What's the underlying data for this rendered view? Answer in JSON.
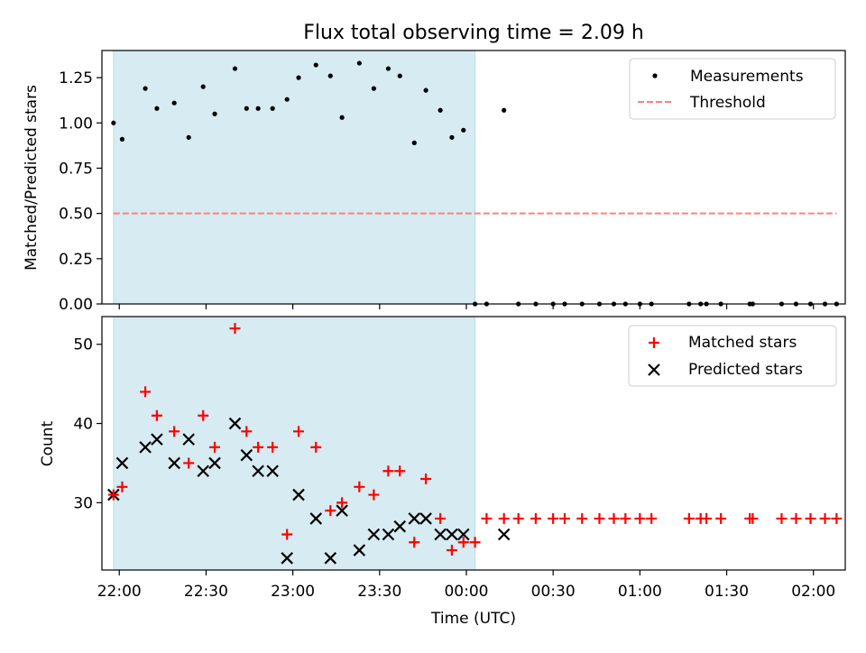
{
  "title": "Flux total observing time = 2.09 h",
  "colors": {
    "shade": "#add8e6",
    "threshold": "#ff7f7f",
    "matched": "#ff0000",
    "predicted": "#000000",
    "measurement": "#000000"
  },
  "chart_data": [
    {
      "type": "scatter",
      "panel": "top",
      "ylabel": "Matched/Predicted stars",
      "ylim": [
        0.0,
        1.4
      ],
      "yticks": [
        "0.00",
        "0.25",
        "0.50",
        "0.75",
        "1.00",
        "1.25"
      ],
      "xlim": [
        "21:54",
        "02:11"
      ],
      "shaded_interval": [
        "21:58",
        "00:03"
      ],
      "threshold": 0.5,
      "threshold_x": [
        "21:58",
        "02:08"
      ],
      "legend": {
        "placement": "upper right",
        "entries": [
          "Measurements",
          "Threshold"
        ]
      },
      "series": [
        {
          "name": "Measurements",
          "marker": "dot",
          "x": [
            "21:58",
            "22:01",
            "22:09",
            "22:13",
            "22:19",
            "22:24",
            "22:29",
            "22:33",
            "22:40",
            "22:44",
            "22:48",
            "22:53",
            "22:58",
            "23:02",
            "23:08",
            "23:13",
            "23:17",
            "23:23",
            "23:28",
            "23:33",
            "23:37",
            "23:42",
            "23:46",
            "23:51",
            "23:55",
            "23:59",
            "00:03",
            "00:07",
            "00:13",
            "00:18",
            "00:24",
            "00:30",
            "00:34",
            "00:40",
            "00:46",
            "00:51",
            "00:55",
            "01:00",
            "01:04",
            "01:17",
            "01:21",
            "01:23",
            "01:28",
            "01:38",
            "01:39",
            "01:49",
            "01:54",
            "01:59",
            "02:04",
            "02:08"
          ],
          "values": [
            1.0,
            0.91,
            1.19,
            1.08,
            1.11,
            0.92,
            1.2,
            1.05,
            1.3,
            1.08,
            1.08,
            1.08,
            1.13,
            1.25,
            1.32,
            1.26,
            1.03,
            1.33,
            1.19,
            1.3,
            1.26,
            0.89,
            1.18,
            1.07,
            0.92,
            0.96,
            0.0,
            0.0,
            1.07,
            0.0,
            0.0,
            0.0,
            0.0,
            0.0,
            0.0,
            0.0,
            0.0,
            0.0,
            0.0,
            0.0,
            0.0,
            0.0,
            0.0,
            0.0,
            0.0,
            0.0,
            0.0,
            0.0,
            0.0,
            0.0
          ]
        }
      ]
    },
    {
      "type": "scatter",
      "panel": "bottom",
      "ylabel": "Count",
      "xlabel": "Time (UTC)",
      "ylim": [
        21.5,
        53.5
      ],
      "yticks": [
        "30",
        "40",
        "50"
      ],
      "xlim": [
        "21:54",
        "02:11"
      ],
      "xticks": [
        "22:00",
        "22:30",
        "23:00",
        "23:30",
        "00:00",
        "00:30",
        "01:00",
        "01:30",
        "02:00"
      ],
      "shaded_interval": [
        "21:58",
        "00:03"
      ],
      "legend": {
        "placement": "upper right",
        "entries": [
          "Matched stars",
          "Predicted stars"
        ]
      },
      "series": [
        {
          "name": "Matched stars",
          "marker": "plus",
          "x": [
            "21:58",
            "22:01",
            "22:09",
            "22:13",
            "22:19",
            "22:24",
            "22:29",
            "22:33",
            "22:40",
            "22:44",
            "22:48",
            "22:53",
            "22:58",
            "23:02",
            "23:08",
            "23:13",
            "23:17",
            "23:23",
            "23:28",
            "23:33",
            "23:37",
            "23:42",
            "23:46",
            "23:51",
            "23:55",
            "23:59",
            "00:03",
            "00:07",
            "00:13",
            "00:18",
            "00:24",
            "00:30",
            "00:34",
            "00:40",
            "00:46",
            "00:51",
            "00:55",
            "01:00",
            "01:04",
            "01:17",
            "01:21",
            "01:23",
            "01:28",
            "01:38",
            "01:39",
            "01:49",
            "01:54",
            "01:59",
            "02:04",
            "02:08"
          ],
          "values": [
            31,
            32,
            44,
            41,
            39,
            35,
            41,
            37,
            52,
            39,
            37,
            37,
            26,
            39,
            37,
            29,
            30,
            32,
            31,
            34,
            34,
            25,
            33,
            28,
            24,
            25,
            25,
            28,
            28,
            28,
            28,
            28,
            28,
            28,
            28,
            28,
            28,
            28,
            28,
            28,
            28,
            28,
            28,
            28,
            28,
            28,
            28,
            28,
            28,
            28
          ]
        },
        {
          "name": "Predicted stars",
          "marker": "x",
          "x": [
            "21:58",
            "22:01",
            "22:09",
            "22:13",
            "22:19",
            "22:24",
            "22:29",
            "22:33",
            "22:40",
            "22:44",
            "22:48",
            "22:53",
            "22:58",
            "23:02",
            "23:08",
            "23:13",
            "23:17",
            "23:23",
            "23:28",
            "23:33",
            "23:37",
            "23:42",
            "23:46",
            "23:51",
            "23:55",
            "23:59",
            "00:13"
          ],
          "values": [
            31,
            35,
            37,
            38,
            35,
            38,
            34,
            35,
            40,
            36,
            34,
            34,
            23,
            31,
            28,
            23,
            29,
            24,
            26,
            26,
            27,
            28,
            28,
            26,
            26,
            26,
            26
          ]
        }
      ]
    }
  ]
}
